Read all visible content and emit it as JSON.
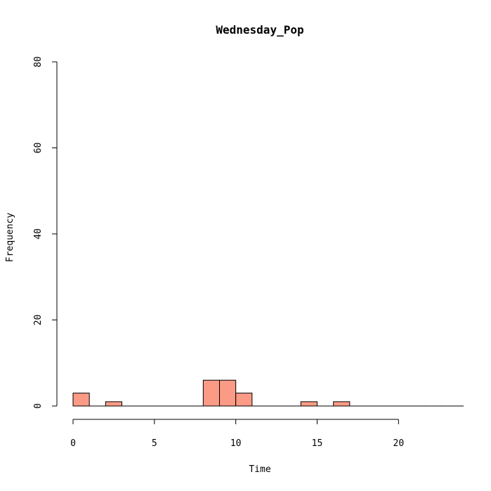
{
  "chart_data": {
    "type": "bar",
    "title": "Wednesday_Pop",
    "xlabel": "Time",
    "ylabel": "Frequency",
    "bin_width": 1,
    "bins": [
      {
        "start": 0,
        "end": 1,
        "count": 3
      },
      {
        "start": 1,
        "end": 2,
        "count": 0
      },
      {
        "start": 2,
        "end": 3,
        "count": 1
      },
      {
        "start": 3,
        "end": 4,
        "count": 0
      },
      {
        "start": 4,
        "end": 5,
        "count": 0
      },
      {
        "start": 5,
        "end": 6,
        "count": 0
      },
      {
        "start": 6,
        "end": 7,
        "count": 0
      },
      {
        "start": 7,
        "end": 8,
        "count": 0
      },
      {
        "start": 8,
        "end": 9,
        "count": 6
      },
      {
        "start": 9,
        "end": 10,
        "count": 6
      },
      {
        "start": 10,
        "end": 11,
        "count": 3
      },
      {
        "start": 11,
        "end": 12,
        "count": 0
      },
      {
        "start": 12,
        "end": 13,
        "count": 0
      },
      {
        "start": 13,
        "end": 14,
        "count": 0
      },
      {
        "start": 14,
        "end": 15,
        "count": 1
      },
      {
        "start": 15,
        "end": 16,
        "count": 0
      },
      {
        "start": 16,
        "end": 17,
        "count": 1
      },
      {
        "start": 17,
        "end": 18,
        "count": 0
      },
      {
        "start": 18,
        "end": 19,
        "count": 0
      },
      {
        "start": 19,
        "end": 20,
        "count": 0
      },
      {
        "start": 20,
        "end": 21,
        "count": 0
      },
      {
        "start": 21,
        "end": 22,
        "count": 0
      },
      {
        "start": 22,
        "end": 23,
        "count": 0
      },
      {
        "start": 23,
        "end": 24,
        "count": 0
      }
    ],
    "xlim": [
      0,
      24
    ],
    "ylim": [
      0,
      80
    ],
    "x_ticks": [
      0,
      5,
      10,
      15,
      20
    ],
    "y_ticks": [
      0,
      20,
      40,
      60,
      80
    ],
    "bar_color": "#fb9a85",
    "grid": false,
    "legend": "none"
  }
}
